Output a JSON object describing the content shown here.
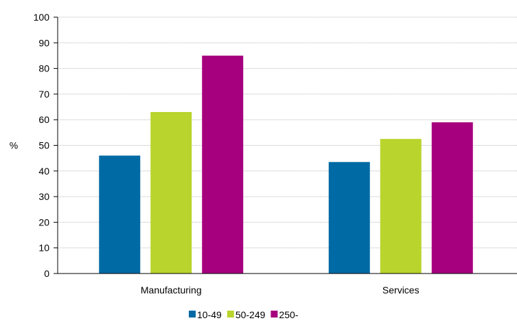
{
  "chart_data": {
    "type": "bar",
    "categories": [
      "Manufacturing",
      "Services"
    ],
    "series": [
      {
        "name": "10-49",
        "values": [
          46,
          43.5
        ],
        "color": "#006aa5"
      },
      {
        "name": "50-249",
        "values": [
          63,
          52.5
        ],
        "color": "#b9d42c"
      },
      {
        "name": "250-",
        "values": [
          85,
          59
        ],
        "color": "#a6007e"
      }
    ],
    "ylabel": "%",
    "xlabel": "",
    "ylim": [
      0,
      100
    ],
    "yticks": [
      0,
      10,
      20,
      30,
      40,
      50,
      60,
      70,
      80,
      90,
      100
    ],
    "grid": true,
    "legend": "bottom"
  }
}
